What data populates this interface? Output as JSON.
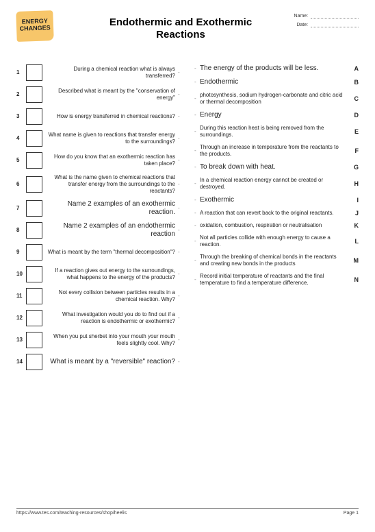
{
  "logo": {
    "line1": "ENERGY",
    "line2": "CHANGES"
  },
  "title": "Endothermic and Exothermic Reactions",
  "fields": {
    "name_label": "Name:",
    "date_label": "Date:"
  },
  "questions": [
    {
      "n": "1",
      "text": "During a chemical reaction what is always transferred?",
      "big": false
    },
    {
      "n": "2",
      "text": "Described what is meant by the \"conservation of energy\"",
      "big": false
    },
    {
      "n": "3",
      "text": "How is energy transferred in chemical reactions?",
      "big": false
    },
    {
      "n": "4",
      "text": "What name is given to reactions that transfer energy to the surroundings?",
      "big": false
    },
    {
      "n": "5",
      "text": "How do you know that an exothermic reaction has taken place?",
      "big": false
    },
    {
      "n": "6",
      "text": "What is the name given to chemical reactions that transfer energy from the surroundings to the reactants?",
      "big": false
    },
    {
      "n": "7",
      "text": "Name 2 examples of an exothermic reaction.",
      "big": true
    },
    {
      "n": "8",
      "text": "Name 2 examples of an endothermic reaction",
      "big": true
    },
    {
      "n": "9",
      "text": "What is meant by the term \"thermal decomposition\"?",
      "big": false
    },
    {
      "n": "10",
      "text": "If a reaction gives out energy to the surroundings, what happens to the energy of the products?",
      "big": false
    },
    {
      "n": "11",
      "text": "Not every collision between particles results in a chemical reaction.  Why?",
      "big": false
    },
    {
      "n": "12",
      "text": "What investigation would you do to find out if a reaction is endothermic or exothermic?",
      "big": false
    },
    {
      "n": "13",
      "text": "When you put sherbet into your mouth your mouth feels slightly cool.  Why?",
      "big": false
    },
    {
      "n": "14",
      "text": "What is meant by a \"reversible\" reaction?",
      "big": true
    }
  ],
  "answers": [
    {
      "l": "A",
      "text": "The energy of the products will be less.",
      "big": true
    },
    {
      "l": "B",
      "text": "Endothermic",
      "big": true
    },
    {
      "l": "C",
      "text": "photosynthesis, sodium hydrogen-carbonate and citric acid or thermal decomposition",
      "big": false
    },
    {
      "l": "D",
      "text": "Energy",
      "big": true
    },
    {
      "l": "E",
      "text": "During this reaction heat is being removed from the surroundings.",
      "big": false
    },
    {
      "l": "F",
      "text": "Through an increase in temperature from the reactants to the products.",
      "big": false
    },
    {
      "l": "G",
      "text": "To break down with heat.",
      "big": true
    },
    {
      "l": "H",
      "text": "In a chemical reaction energy cannot be created or destroyed.",
      "big": false
    },
    {
      "l": "I",
      "text": "Exothermic",
      "big": true
    },
    {
      "l": "J",
      "text": "A reaction that can revert back to the original reactants.",
      "big": false
    },
    {
      "l": "K",
      "text": "oxidation, combustion, respiration or neutralisation",
      "big": false
    },
    {
      "l": "L",
      "text": "Not all particles collide with enough energy to cause a reaction.",
      "big": false
    },
    {
      "l": "M",
      "text": "Through the breaking of chemical bonds in the reactants and creating new bonds in the products",
      "big": false
    },
    {
      "l": "N",
      "text": "Record initial temperature of reactants and the final temperature to find a temperature difference.",
      "big": false
    }
  ],
  "footer": {
    "url": "https://www.tes.com/teaching-resources/shop/heelis",
    "page": "Page 1"
  }
}
